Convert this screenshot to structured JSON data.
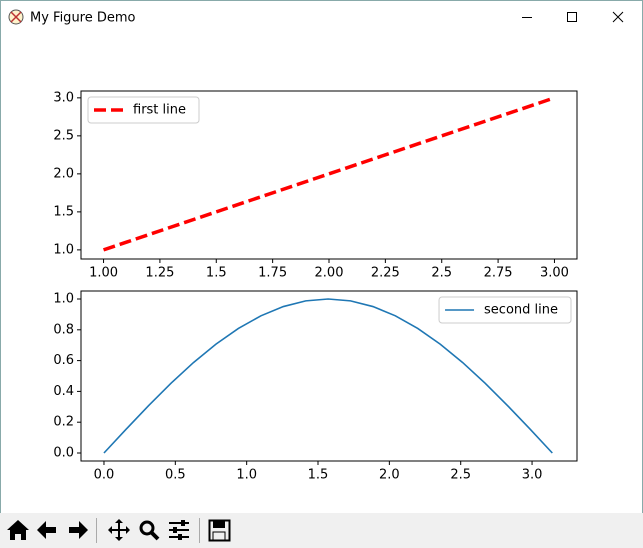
{
  "window": {
    "title": "My Figure Demo"
  },
  "chart_data": [
    {
      "type": "line",
      "x": [
        1,
        2,
        3
      ],
      "series": [
        {
          "name": "first line",
          "color": "#ff0000",
          "line_style": "dashed",
          "values": [
            1,
            2,
            3
          ]
        }
      ],
      "xlim": [
        0.9,
        3.1
      ],
      "ylim": [
        0.88,
        3.09
      ],
      "xticks": [
        {
          "value": 1,
          "label": "1.00"
        },
        1.25,
        1.5,
        1.75,
        {
          "value": 2,
          "label": "2.00"
        },
        2.25,
        2.5,
        2.75,
        {
          "value": 3,
          "label": "3.00"
        }
      ],
      "yticks": [
        {
          "value": 1,
          "label": "1.0"
        },
        1.5,
        {
          "value": 2,
          "label": "2.0"
        },
        2.5,
        {
          "value": 3,
          "label": "3.0"
        }
      ],
      "legend": "upper left"
    },
    {
      "type": "line",
      "x": [
        0,
        0.157,
        0.314,
        0.471,
        0.628,
        0.785,
        0.942,
        1.1,
        1.257,
        1.414,
        1.571,
        1.728,
        1.885,
        2.042,
        2.199,
        2.356,
        2.513,
        2.67,
        2.827,
        2.985,
        3.142
      ],
      "series": [
        {
          "name": "second line",
          "color": "#1f77b4",
          "line_style": "solid",
          "values": [
            0,
            0.156,
            0.309,
            0.454,
            0.588,
            0.707,
            0.809,
            0.891,
            0.951,
            0.988,
            1,
            0.988,
            0.951,
            0.891,
            0.809,
            0.707,
            0.588,
            0.454,
            0.309,
            0.156,
            0
          ]
        }
      ],
      "xlim": [
        -0.161,
        3.315
      ],
      "ylim": [
        -0.052,
        1.052
      ],
      "xticks": [
        {
          "value": 0,
          "label": "0.0"
        },
        0.5,
        {
          "value": 1,
          "label": "1.0"
        },
        1.5,
        {
          "value": 2,
          "label": "2.0"
        },
        2.5,
        {
          "value": 3,
          "label": "3.0"
        }
      ],
      "yticks": [
        {
          "value": 0,
          "label": "0.0"
        },
        0.2,
        0.4,
        0.6,
        0.8,
        {
          "value": 1,
          "label": "1.0"
        }
      ],
      "legend": "upper right"
    }
  ]
}
